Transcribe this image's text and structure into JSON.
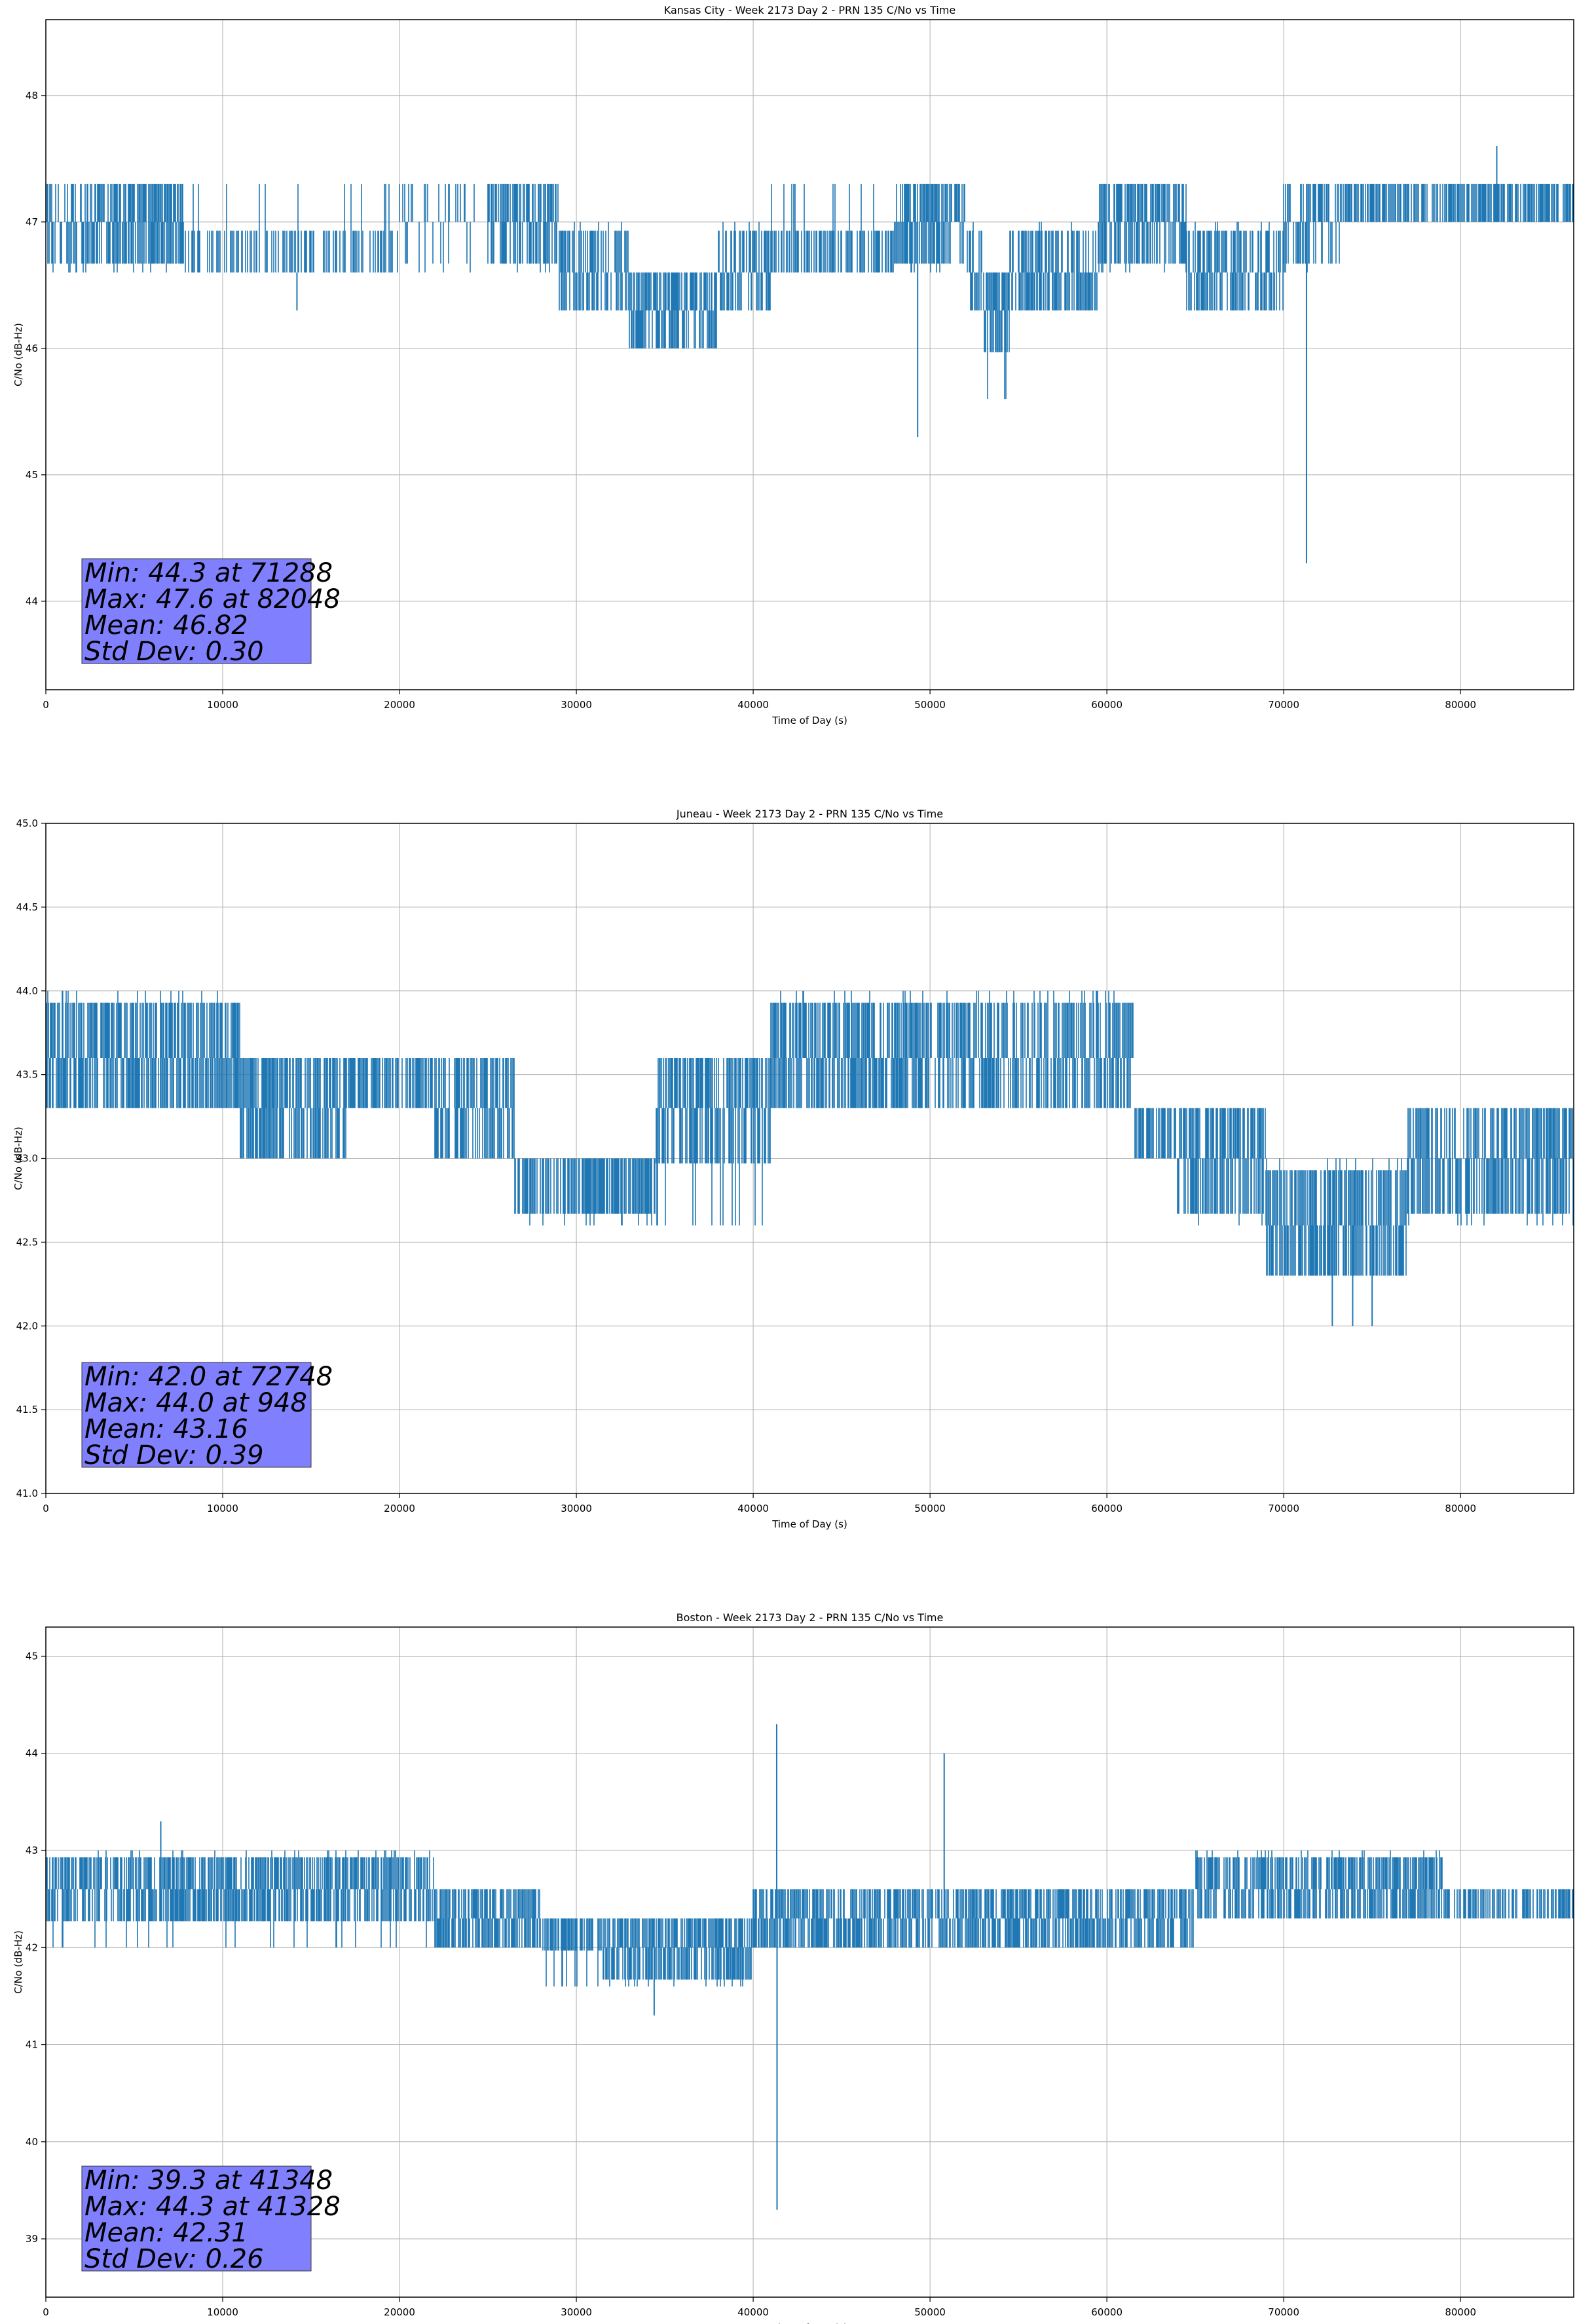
{
  "figure": {
    "line_color": "#1f77b4",
    "stats_box_color": "#8080ff",
    "grid_color": "#b0b0b0"
  },
  "chart_data": [
    {
      "type": "line",
      "title": "Kansas City - Week 2173 Day 2 - PRN 135 C/No vs Time",
      "xlabel": "Time of Day (s)",
      "ylabel": "C/No (dB-Hz)",
      "xlim": [
        0,
        86400
      ],
      "ylim": [
        43.3,
        48.6
      ],
      "xticks": [
        0,
        10000,
        20000,
        30000,
        40000,
        50000,
        60000,
        70000,
        80000
      ],
      "yticks": [
        44,
        45,
        46,
        47,
        48
      ],
      "ytick_decimals": 0,
      "grid": true,
      "quant": 0.33,
      "segments": [
        {
          "x": [
            0,
            2500
          ],
          "base": 47.0,
          "lo": 46.6,
          "hi": 47.3,
          "d": 0.25
        },
        {
          "x": [
            2500,
            7800
          ],
          "base": 47.0,
          "lo": 46.6,
          "hi": 47.3,
          "d": 0.55
        },
        {
          "x": [
            7800,
            20000
          ],
          "base": 46.6,
          "lo": 46.6,
          "hi": 47.3,
          "d": 0.25
        },
        {
          "x": [
            20000,
            25000
          ],
          "base": 47.0,
          "lo": 46.6,
          "hi": 47.3,
          "d": 0.05
        },
        {
          "x": [
            25000,
            29000
          ],
          "base": 47.0,
          "lo": 46.6,
          "hi": 47.3,
          "d": 0.45
        },
        {
          "x": [
            29000,
            33000
          ],
          "base": 46.6,
          "lo": 46.3,
          "hi": 47.0,
          "d": 0.4
        },
        {
          "x": [
            33000,
            38000
          ],
          "base": 46.3,
          "lo": 46.0,
          "hi": 46.6,
          "d": 0.5
        },
        {
          "x": [
            38000,
            41000
          ],
          "base": 46.6,
          "lo": 46.3,
          "hi": 47.0,
          "d": 0.3
        },
        {
          "x": [
            41000,
            48000
          ],
          "base": 46.6,
          "lo": 46.6,
          "hi": 47.3,
          "d": 0.45
        },
        {
          "x": [
            48000,
            52000
          ],
          "base": 47.0,
          "lo": 46.6,
          "hi": 47.3,
          "d": 0.5
        },
        {
          "x": [
            52000,
            53000
          ],
          "base": 46.6,
          "lo": 46.3,
          "hi": 47.0,
          "d": 0.4
        },
        {
          "x": [
            53000,
            54500
          ],
          "base": 46.3,
          "lo": 45.6,
          "hi": 46.6,
          "d": 0.5
        },
        {
          "x": [
            54500,
            59500
          ],
          "base": 46.6,
          "lo": 46.3,
          "hi": 47.0,
          "d": 0.45
        },
        {
          "x": [
            59500,
            64500
          ],
          "base": 47.0,
          "lo": 46.6,
          "hi": 47.3,
          "d": 0.45
        },
        {
          "x": [
            64500,
            70000
          ],
          "base": 46.6,
          "lo": 46.3,
          "hi": 47.0,
          "d": 0.4
        },
        {
          "x": [
            70000,
            73500
          ],
          "base": 47.0,
          "lo": 46.6,
          "hi": 47.3,
          "d": 0.35
        },
        {
          "x": [
            73500,
            86400
          ],
          "base": 47.0,
          "lo": 47.0,
          "hi": 47.3,
          "d": 0.5
        }
      ],
      "spikes": [
        [
          14200,
          46.3
        ],
        [
          49300,
          45.3
        ],
        [
          71288,
          44.3
        ],
        [
          82048,
          47.6
        ]
      ],
      "stats": [
        "Min: 44.3 at 71288",
        "Max: 47.6 at 82048",
        "Mean: 46.82",
        "Std Dev: 0.30"
      ]
    },
    {
      "type": "line",
      "title": "Juneau - Week 2173 Day 2 - PRN 135 C/No vs Time",
      "xlabel": "Time of Day (s)",
      "ylabel": "C/No (dB-Hz)",
      "xlim": [
        0,
        86400
      ],
      "ylim": [
        41.0,
        45.0
      ],
      "xticks": [
        0,
        10000,
        20000,
        30000,
        40000,
        50000,
        60000,
        70000,
        80000
      ],
      "yticks": [
        41.0,
        41.5,
        42.0,
        42.5,
        43.0,
        43.5,
        44.0,
        44.5,
        45.0
      ],
      "ytick_decimals": 1,
      "grid": true,
      "quant": 0.33,
      "segments": [
        {
          "x": [
            0,
            11000
          ],
          "base": 43.6,
          "lo": 43.3,
          "hi": 44.0,
          "d": 0.5
        },
        {
          "x": [
            11000,
            17000
          ],
          "base": 43.3,
          "lo": 43.0,
          "hi": 43.6,
          "d": 0.5
        },
        {
          "x": [
            17000,
            22000
          ],
          "base": 43.6,
          "lo": 43.3,
          "hi": 43.6,
          "d": 0.5
        },
        {
          "x": [
            22000,
            26500
          ],
          "base": 43.3,
          "lo": 43.0,
          "hi": 43.6,
          "d": 0.45
        },
        {
          "x": [
            26500,
            34500
          ],
          "base": 43.0,
          "lo": 42.6,
          "hi": 43.0,
          "d": 0.5
        },
        {
          "x": [
            34500,
            41000
          ],
          "base": 43.3,
          "lo": 42.6,
          "hi": 43.6,
          "d": 0.5
        },
        {
          "x": [
            41000,
            50000
          ],
          "base": 43.6,
          "lo": 43.3,
          "hi": 44.0,
          "d": 0.5
        },
        {
          "x": [
            50000,
            61500
          ],
          "base": 43.6,
          "lo": 43.3,
          "hi": 44.0,
          "d": 0.45
        },
        {
          "x": [
            61500,
            64000
          ],
          "base": 43.3,
          "lo": 43.0,
          "hi": 43.3,
          "d": 0.5
        },
        {
          "x": [
            64000,
            69000
          ],
          "base": 43.0,
          "lo": 42.6,
          "hi": 43.3,
          "d": 0.5
        },
        {
          "x": [
            69000,
            77000
          ],
          "base": 42.6,
          "lo": 42.3,
          "hi": 43.0,
          "d": 0.5
        },
        {
          "x": [
            77000,
            86400
          ],
          "base": 43.0,
          "lo": 42.6,
          "hi": 43.3,
          "d": 0.5
        }
      ],
      "spikes": [
        [
          948,
          44.0
        ],
        [
          72748,
          42.0
        ],
        [
          75000,
          42.0
        ],
        [
          73900,
          42.0
        ]
      ],
      "stats": [
        "Min: 42.0 at 72748",
        "Max: 44.0 at 948",
        "Mean: 43.16",
        "Std Dev: 0.39"
      ]
    },
    {
      "type": "line",
      "title": "Boston - Week 2173 Day 2 - PRN 135 C/No vs Time",
      "xlabel": "Time of Day (s)",
      "ylabel": "C/No (dB-Hz)",
      "xlim": [
        0,
        86400
      ],
      "ylim": [
        38.4,
        45.3
      ],
      "xticks": [
        0,
        10000,
        20000,
        30000,
        40000,
        50000,
        60000,
        70000,
        80000
      ],
      "yticks": [
        39,
        40,
        41,
        42,
        43,
        44,
        45
      ],
      "ytick_decimals": 0,
      "grid": true,
      "quant": 0.33,
      "segments": [
        {
          "x": [
            0,
            22000
          ],
          "base": 42.6,
          "lo": 42.0,
          "hi": 43.0,
          "d": 0.5
        },
        {
          "x": [
            22000,
            28000
          ],
          "base": 42.3,
          "lo": 42.0,
          "hi": 42.6,
          "d": 0.5
        },
        {
          "x": [
            28000,
            31500
          ],
          "base": 42.3,
          "lo": 41.6,
          "hi": 42.3,
          "d": 0.5
        },
        {
          "x": [
            31500,
            40000
          ],
          "base": 42.0,
          "lo": 41.6,
          "hi": 42.3,
          "d": 0.5
        },
        {
          "x": [
            40000,
            65000
          ],
          "base": 42.3,
          "lo": 42.0,
          "hi": 42.6,
          "d": 0.5
        },
        {
          "x": [
            65000,
            72500
          ],
          "base": 42.6,
          "lo": 42.3,
          "hi": 43.0,
          "d": 0.45
        },
        {
          "x": [
            72500,
            79000
          ],
          "base": 42.6,
          "lo": 42.3,
          "hi": 43.0,
          "d": 0.55
        },
        {
          "x": [
            79000,
            86400
          ],
          "base": 42.3,
          "lo": 42.3,
          "hi": 42.6,
          "d": 0.5
        }
      ],
      "spikes": [
        [
          41348,
          39.3
        ],
        [
          41328,
          44.3
        ],
        [
          50800,
          44.0
        ],
        [
          34400,
          41.3
        ],
        [
          6500,
          43.3
        ]
      ],
      "stats": [
        "Min: 39.3 at 41348",
        "Max: 44.3 at 41328",
        "Mean: 42.31",
        "Std Dev: 0.26"
      ]
    }
  ]
}
